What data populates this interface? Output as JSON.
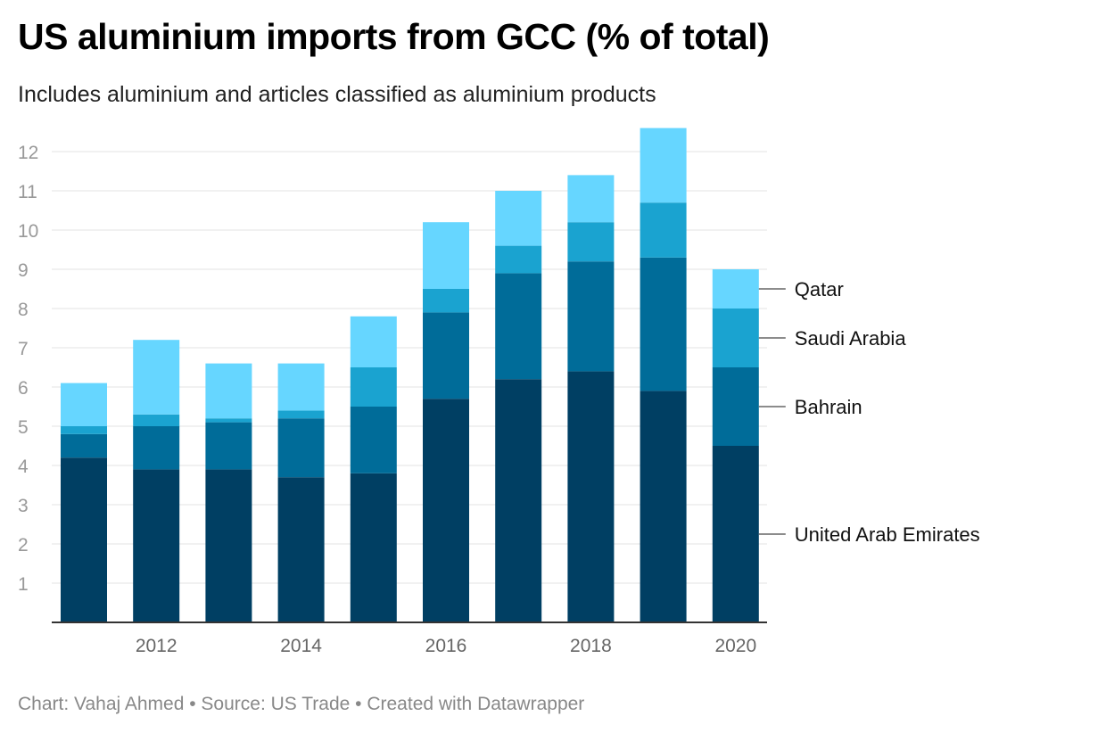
{
  "header": {
    "title": "US aluminium imports from GCC (% of total)",
    "subtitle": "Includes aluminium and articles classified as aluminium products"
  },
  "footer": {
    "text": "Chart: Vahaj Ahmed • Source: US Trade • Created with Datawrapper"
  },
  "chart_data": {
    "type": "bar",
    "stacked": true,
    "categories": [
      2011,
      2012,
      2013,
      2014,
      2015,
      2016,
      2017,
      2018,
      2019,
      2020
    ],
    "x_tick_labels": [
      "2012",
      "2014",
      "2016",
      "2018",
      "2020"
    ],
    "y_ticks": [
      1,
      2,
      3,
      4,
      5,
      6,
      7,
      8,
      9,
      10,
      11,
      12
    ],
    "ylim": [
      0,
      12.6
    ],
    "grid": true,
    "legend_placement": "right, labels at last bar",
    "series": [
      {
        "name": "United Arab Emirates",
        "color": "#003f63",
        "values": [
          4.2,
          3.9,
          3.9,
          3.7,
          3.8,
          5.7,
          6.2,
          6.4,
          5.9,
          4.5
        ]
      },
      {
        "name": "Bahrain",
        "color": "#006c99",
        "values": [
          0.6,
          1.1,
          1.2,
          1.5,
          1.7,
          2.2,
          2.7,
          2.8,
          3.4,
          2.0
        ]
      },
      {
        "name": "Saudi Arabia",
        "color": "#1aa3d0",
        "values": [
          0.2,
          0.3,
          0.1,
          0.2,
          1.0,
          0.6,
          0.7,
          1.0,
          1.4,
          1.5
        ]
      },
      {
        "name": "Qatar",
        "color": "#66d6ff",
        "values": [
          1.1,
          1.9,
          1.4,
          1.2,
          1.3,
          1.7,
          1.4,
          1.2,
          1.9,
          1.0
        ]
      }
    ]
  }
}
